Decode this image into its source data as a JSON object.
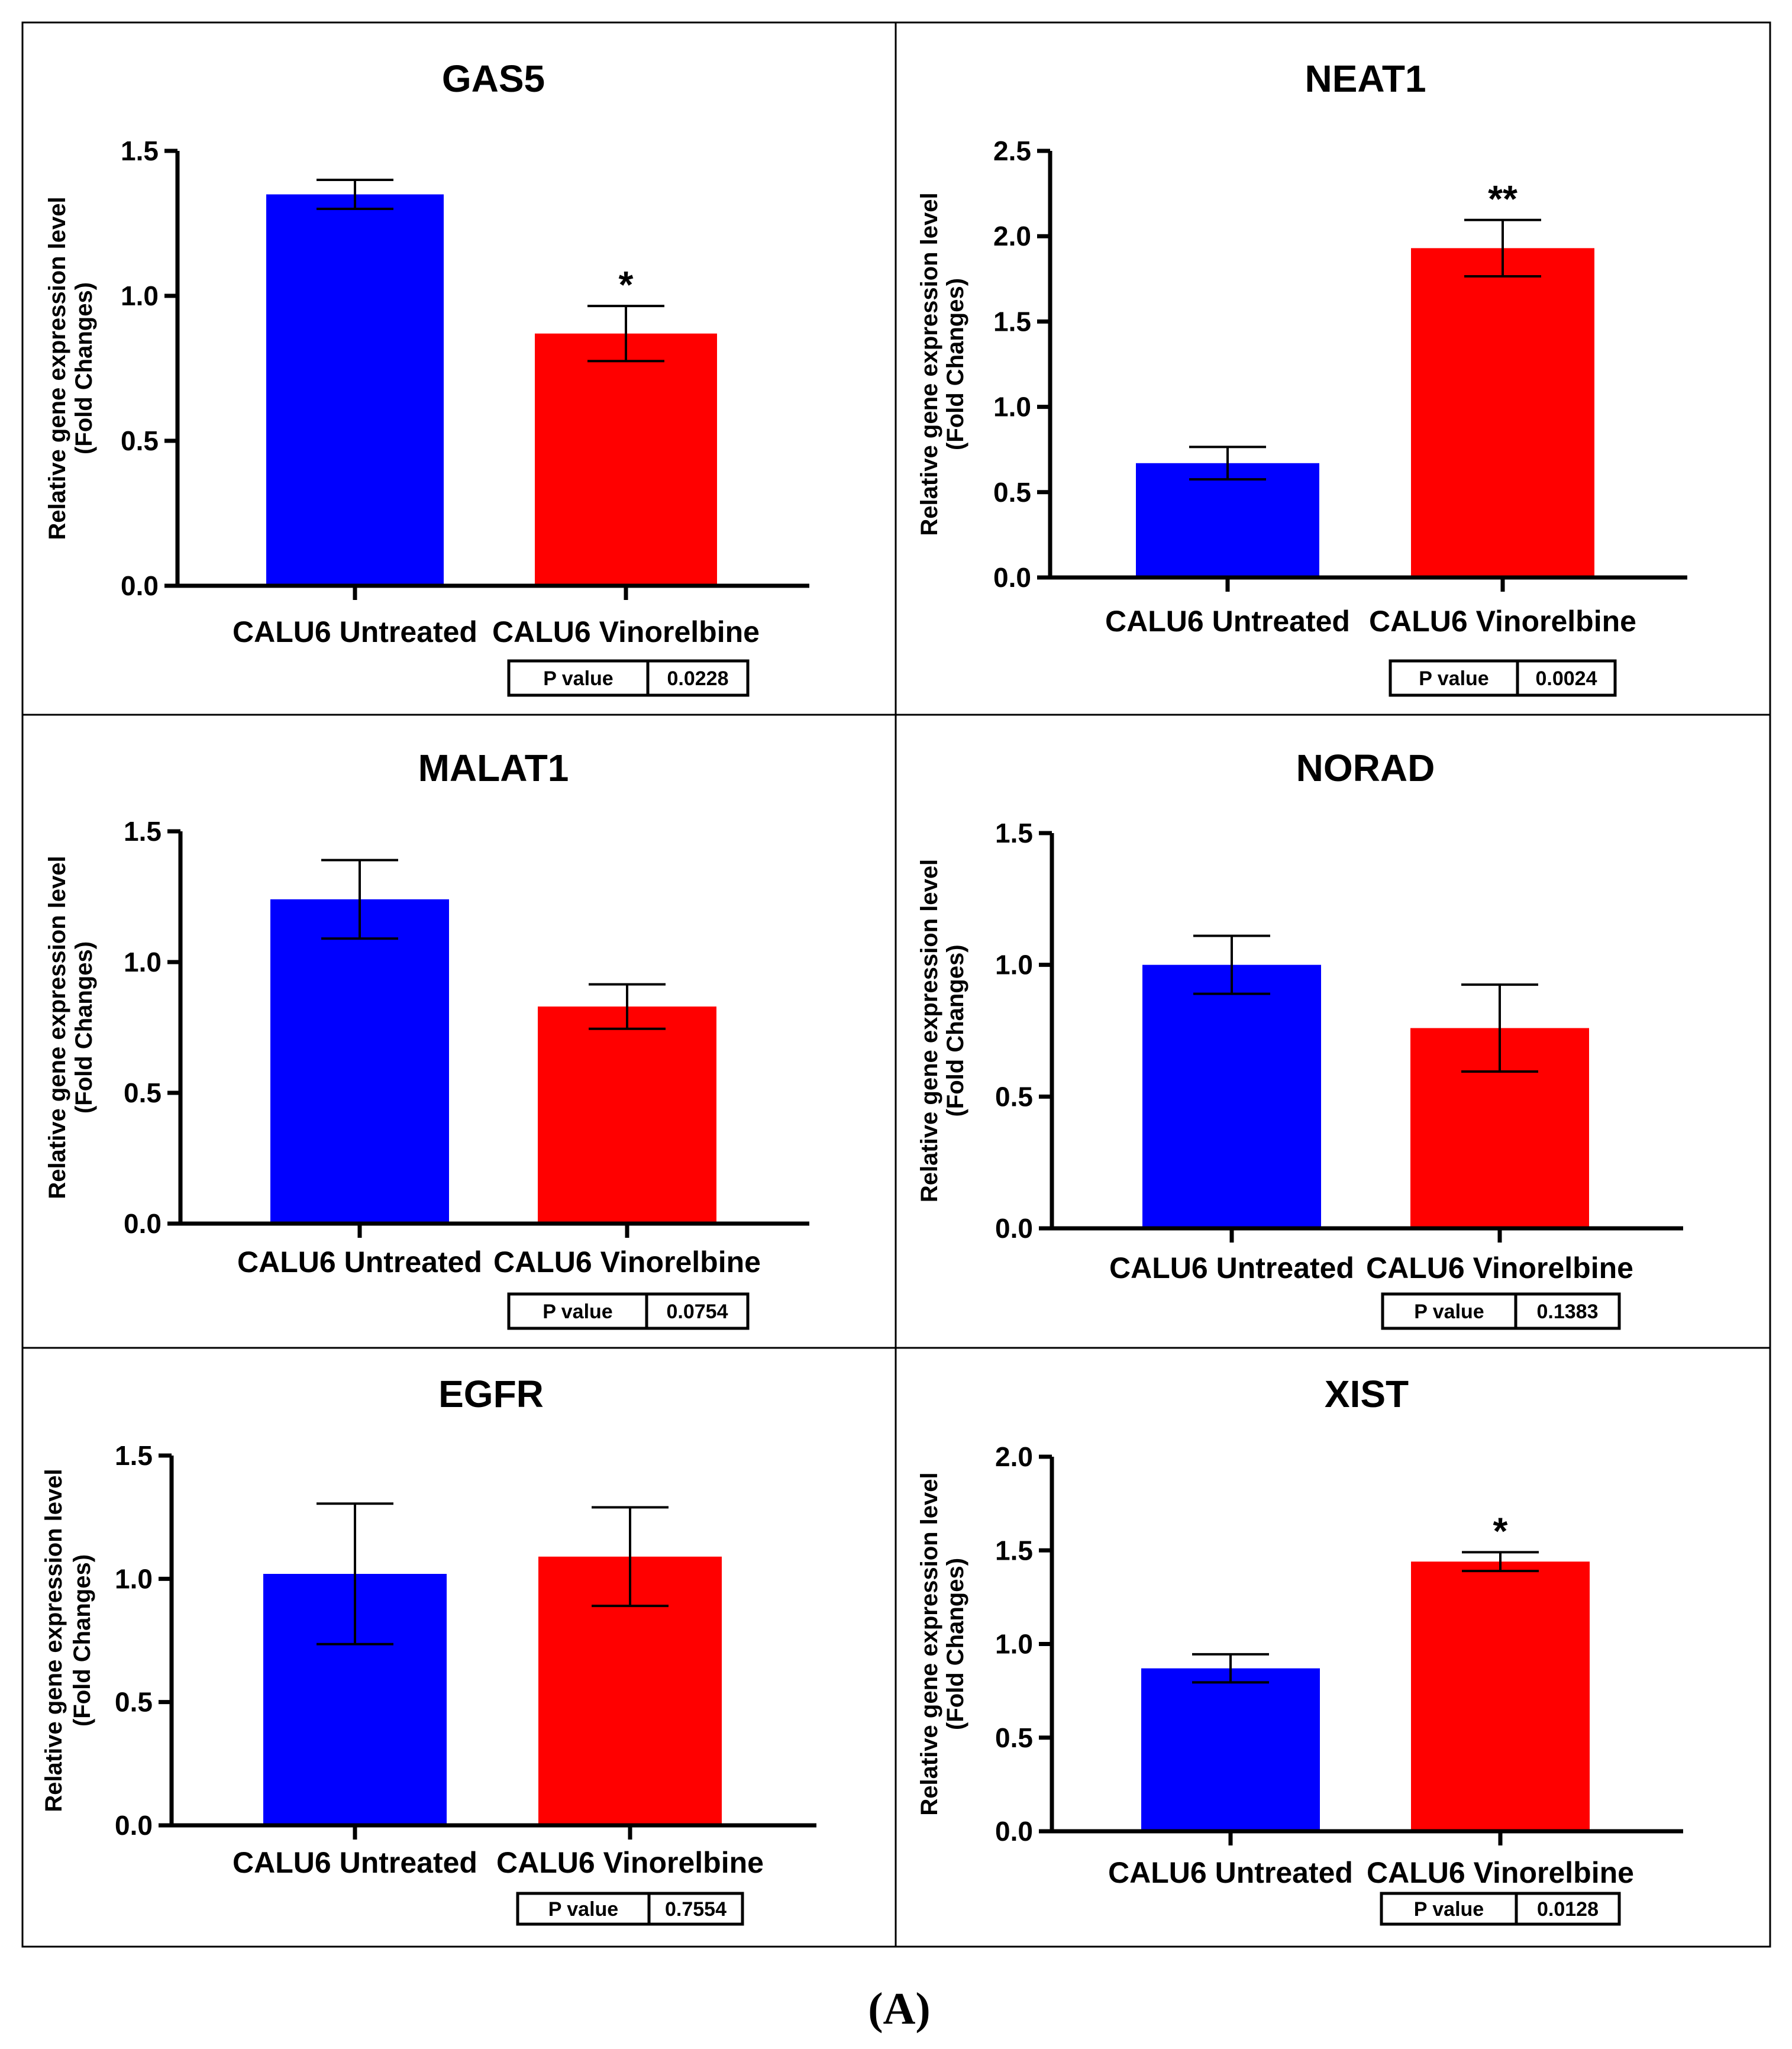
{
  "figure_caption": "(A)",
  "colors": {
    "untreated": "#0000ff",
    "vinorelbine": "#ff0000"
  },
  "chart_data": [
    {
      "type": "bar",
      "title": "GAS5",
      "ylabel_line1": "Relative gene expression level",
      "ylabel_line2": "(Fold Changes)",
      "categories": [
        "CALU6 Untreated",
        "CALU6 Vinorelbine"
      ],
      "values": [
        1.35,
        0.87
      ],
      "errors": [
        0.05,
        0.095
      ],
      "significance": [
        "",
        "*"
      ],
      "ylim": [
        0,
        1.5
      ],
      "yticks": [
        0.0,
        0.5,
        1.0,
        1.5
      ],
      "ytick_labels": [
        "0.0",
        "0.5",
        "1.0",
        "1.5"
      ],
      "p_value_label": "P value",
      "p_value": "0.0228"
    },
    {
      "type": "bar",
      "title": "NEAT1",
      "ylabel_line1": "Relative gene expression level",
      "ylabel_line2": "(Fold Changes)",
      "categories": [
        "CALU6 Untreated",
        "CALU6 Vinorelbine"
      ],
      "values": [
        0.67,
        1.93
      ],
      "errors": [
        0.095,
        0.165
      ],
      "significance": [
        "",
        "**"
      ],
      "ylim": [
        0,
        2.5
      ],
      "yticks": [
        0.0,
        0.5,
        1.0,
        1.5,
        2.0,
        2.5
      ],
      "ytick_labels": [
        "0.0",
        "0.5",
        "1.0",
        "1.5",
        "2.0",
        "2.5"
      ],
      "p_value_label": "P value",
      "p_value": "0.0024"
    },
    {
      "type": "bar",
      "title": "MALAT1",
      "ylabel_line1": "Relative gene expression level",
      "ylabel_line2": "(Fold Changes)",
      "categories": [
        "CALU6 Untreated",
        "CALU6 Vinorelbine"
      ],
      "values": [
        1.24,
        0.83
      ],
      "errors": [
        0.15,
        0.085
      ],
      "significance": [
        "",
        ""
      ],
      "ylim": [
        0,
        1.5
      ],
      "yticks": [
        0.0,
        0.5,
        1.0,
        1.5
      ],
      "ytick_labels": [
        "0.0",
        "0.5",
        "1.0",
        "1.5"
      ],
      "p_value_label": "P value",
      "p_value": "0.0754"
    },
    {
      "type": "bar",
      "title": "NORAD",
      "ylabel_line1": "Relative gene expression level",
      "ylabel_line2": "(Fold Changes)",
      "categories": [
        "CALU6 Untreated",
        "CALU6 Vinorelbine"
      ],
      "values": [
        1.0,
        0.76
      ],
      "errors": [
        0.11,
        0.165
      ],
      "significance": [
        "",
        ""
      ],
      "ylim": [
        0,
        1.5
      ],
      "yticks": [
        0.0,
        0.5,
        1.0,
        1.5
      ],
      "ytick_labels": [
        "0.0",
        "0.5",
        "1.0",
        "1.5"
      ],
      "p_value_label": "P value",
      "p_value": "0.1383"
    },
    {
      "type": "bar",
      "title": "EGFR",
      "ylabel_line1": "Relative gene expression level",
      "ylabel_line2": "(Fold Changes)",
      "categories": [
        "CALU6 Untreated",
        "CALU6 Vinorelbine"
      ],
      "values": [
        1.02,
        1.09
      ],
      "errors": [
        0.285,
        0.2
      ],
      "significance": [
        "",
        ""
      ],
      "ylim": [
        0,
        1.5
      ],
      "yticks": [
        0.0,
        0.5,
        1.0,
        1.5
      ],
      "ytick_labels": [
        "0.0",
        "0.5",
        "1.0",
        "1.5"
      ],
      "p_value_label": "P value",
      "p_value": "0.7554"
    },
    {
      "type": "bar",
      "title": "XIST",
      "ylabel_line1": "Relative gene expression level",
      "ylabel_line2": "(Fold Changes)",
      "categories": [
        "CALU6 Untreated",
        "CALU6 Vinorelbine"
      ],
      "values": [
        0.87,
        1.44
      ],
      "errors": [
        0.075,
        0.05
      ],
      "significance": [
        "",
        "*"
      ],
      "ylim": [
        0,
        2.0
      ],
      "yticks": [
        0.0,
        0.5,
        1.0,
        1.5,
        2.0
      ],
      "ytick_labels": [
        "0.0",
        "0.5",
        "1.0",
        "1.5",
        "2.0"
      ],
      "p_value_label": "P value",
      "p_value": "0.0128"
    }
  ]
}
